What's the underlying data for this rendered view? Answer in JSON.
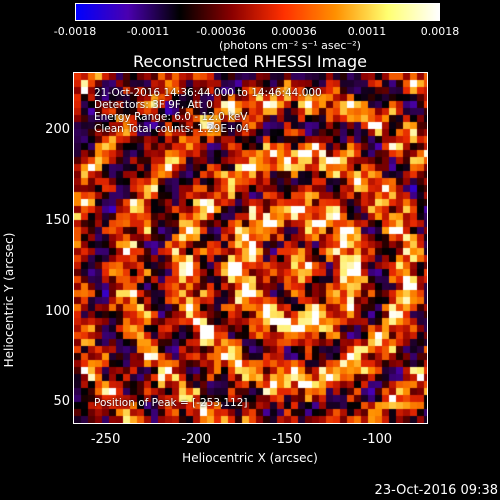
{
  "colorbar": {
    "ticks": [
      "-0.0018",
      "-0.0011",
      "-0.00036",
      "0.00036",
      "0.0011",
      "0.0018"
    ],
    "units": "(photons cm⁻² s⁻¹ asec⁻²)",
    "colors": [
      "#0000ff",
      "#4b00b0",
      "#000000",
      "#8a0000",
      "#ff3000",
      "#ff9000",
      "#ffff70",
      "#ffffff"
    ]
  },
  "title": "Reconstructed RHESSI Image",
  "info": {
    "time_range": "21-Oct-2016 14:36:44.000 to 14:46:44.000",
    "detectors": "Detectors: 3F 9F, Att 0",
    "energy": "Energy Range: 6.0 - 12.0 keV",
    "clean": "Clean     Total counts: 1.29E+04",
    "peak": "Position of Peak = [-253,112]"
  },
  "axes": {
    "xlabel": "Heliocentric X (arcsec)",
    "ylabel": "Heliocentric Y (arcsec)",
    "xticks": [
      -250,
      -200,
      -150,
      -100
    ],
    "yticks": [
      50,
      100,
      150,
      200
    ],
    "xlim": [
      -268,
      -72
    ],
    "ylim": [
      38,
      232
    ]
  },
  "timestamp": "23-Oct-2016 09:38"
}
